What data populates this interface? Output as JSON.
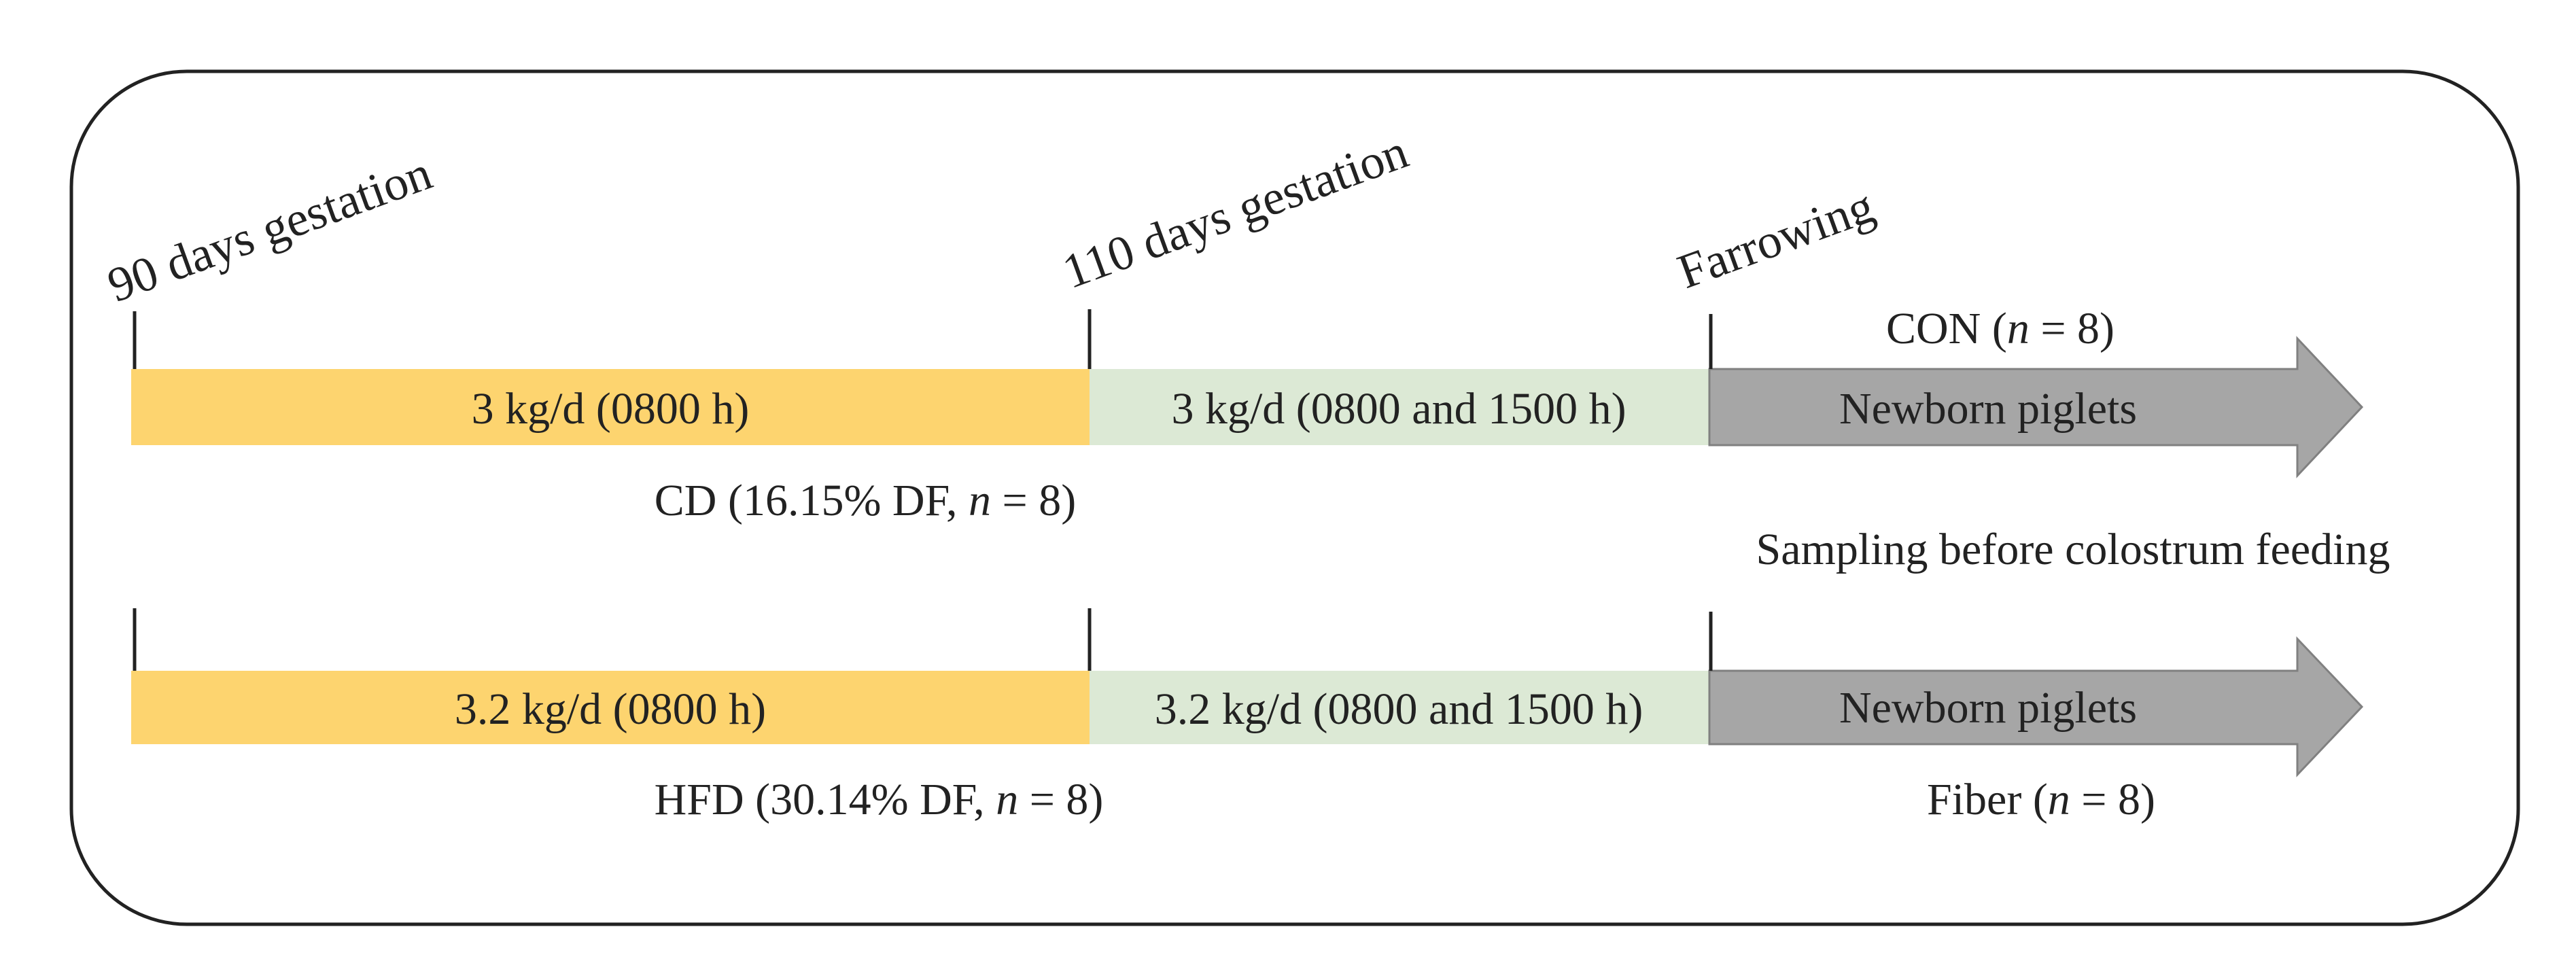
{
  "timeline_labels": {
    "day90": "90 days gestation",
    "day110": "110 days gestation",
    "farrowing": "Farrowing"
  },
  "row_cd": {
    "phase1": "3 kg/d (0800 h)",
    "phase2": "3 kg/d (0800 and 1500 h)",
    "arrow": "Newborn piglets",
    "diet_prefix": "CD (16.15% DF, ",
    "diet_n_symbol": "n",
    "diet_suffix": " = 8)",
    "group_prefix": "CON (",
    "group_n_symbol": "n",
    "group_suffix": " = 8)"
  },
  "sampling_note": "Sampling before colostrum feeding",
  "row_hfd": {
    "phase1": "3.2 kg/d (0800 h)",
    "phase2": "3.2 kg/d (0800 and 1500 h)",
    "arrow": "Newborn piglets",
    "diet_prefix": "HFD (30.14% DF, ",
    "diet_n_symbol": "n",
    "diet_suffix": " = 8)",
    "group_prefix": "Fiber (",
    "group_n_symbol": "n",
    "group_suffix": " = 8)"
  },
  "colors": {
    "phase1": "#fdd46f",
    "phase2": "#dce9d5",
    "arrow": "#a6a6a6",
    "arrow_stroke": "#808080",
    "frame": "#222222"
  },
  "icons": {
    "arrow_shape": "right-arrow"
  }
}
